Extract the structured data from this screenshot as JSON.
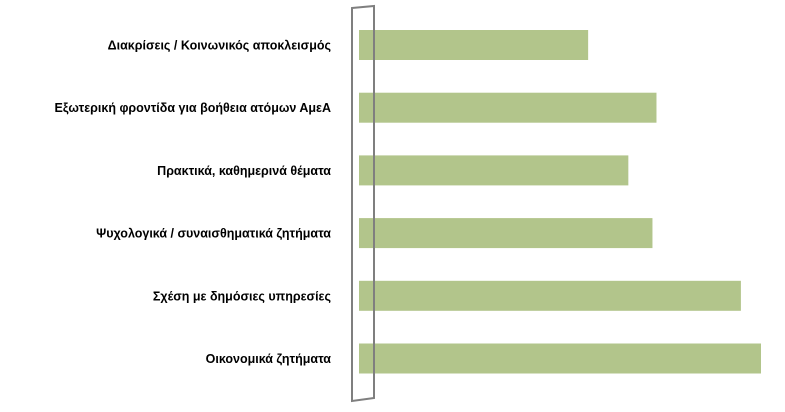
{
  "chart_data": {
    "type": "bar",
    "orientation": "horizontal",
    "categories": [
      "Διακρίσεις / Κοινωνικός αποκλεισμός",
      "Εξωτερική φροντίδα για βοήθεια ατόμων ΑμεΑ",
      "Πρακτικά, καθημερινά θέματα",
      "Ψυχολογικά / συναισθηματικά ζητήματα",
      "Σχέση με δημόσιες υπηρεσίες",
      "Οικονομικά ζητήματα"
    ],
    "values": [
      57,
      74,
      67,
      73,
      95,
      100
    ],
    "xlim": [
      0,
      100
    ],
    "grid": false,
    "legend": "none",
    "colors": {
      "bar": "#b2c58b",
      "axis": "#7f7f7f",
      "text": "#000000"
    }
  }
}
